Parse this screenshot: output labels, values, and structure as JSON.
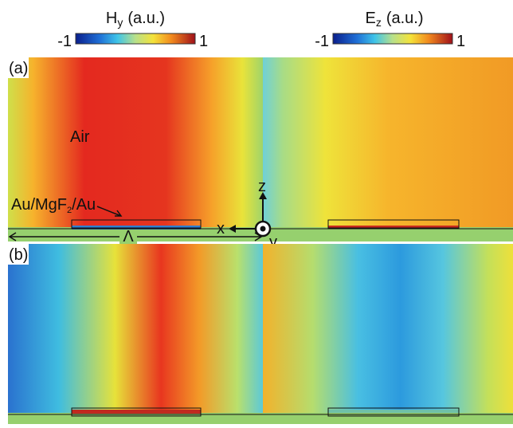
{
  "colorbars": [
    {
      "symbol": "H",
      "subscript": "y",
      "unit": "(a.u.)",
      "min": -1,
      "max": 1
    },
    {
      "symbol": "E",
      "subscript": "z",
      "unit": "(a.u.)",
      "min": -1,
      "max": 1
    }
  ],
  "panels": [
    {
      "label": "(a)"
    },
    {
      "label": "(b)"
    }
  ],
  "annotations": {
    "air": "Air",
    "structure": [
      "Au/MgF",
      "2",
      "/Au"
    ],
    "period": "Λ",
    "x_axis": "x",
    "z_axis": "z",
    "y_axis": "y"
  }
}
